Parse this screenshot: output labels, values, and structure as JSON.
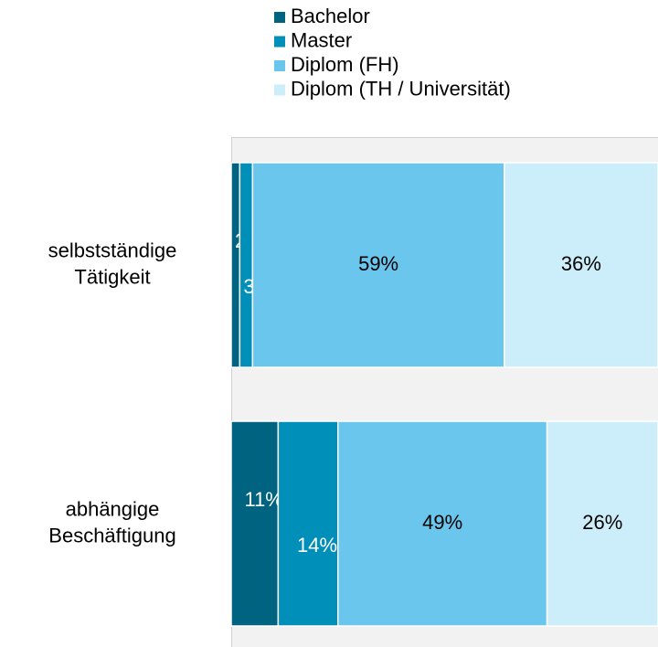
{
  "chart_data": {
    "type": "stacked_barh",
    "categories": [
      "selbstständige Tätigkeit",
      "abhängige Beschäftigung"
    ],
    "series": [
      {
        "name": "Bachelor",
        "color": "#00637f",
        "values": [
          2,
          11
        ],
        "value_labels": [
          "2%",
          "11%"
        ]
      },
      {
        "name": "Master",
        "color": "#008fb8",
        "values": [
          3,
          14
        ],
        "value_labels": [
          "3%",
          "14%"
        ]
      },
      {
        "name": "Diplom (FH)",
        "color": "#6bc6ee",
        "values": [
          59,
          49
        ],
        "value_labels": [
          "59%",
          "49%"
        ]
      },
      {
        "name": "Diplom (TH / Universität)",
        "color": "#cbeefa",
        "values": [
          36,
          26
        ],
        "value_labels": [
          "36%",
          "26%"
        ]
      }
    ],
    "xlim": [
      0,
      100
    ]
  }
}
